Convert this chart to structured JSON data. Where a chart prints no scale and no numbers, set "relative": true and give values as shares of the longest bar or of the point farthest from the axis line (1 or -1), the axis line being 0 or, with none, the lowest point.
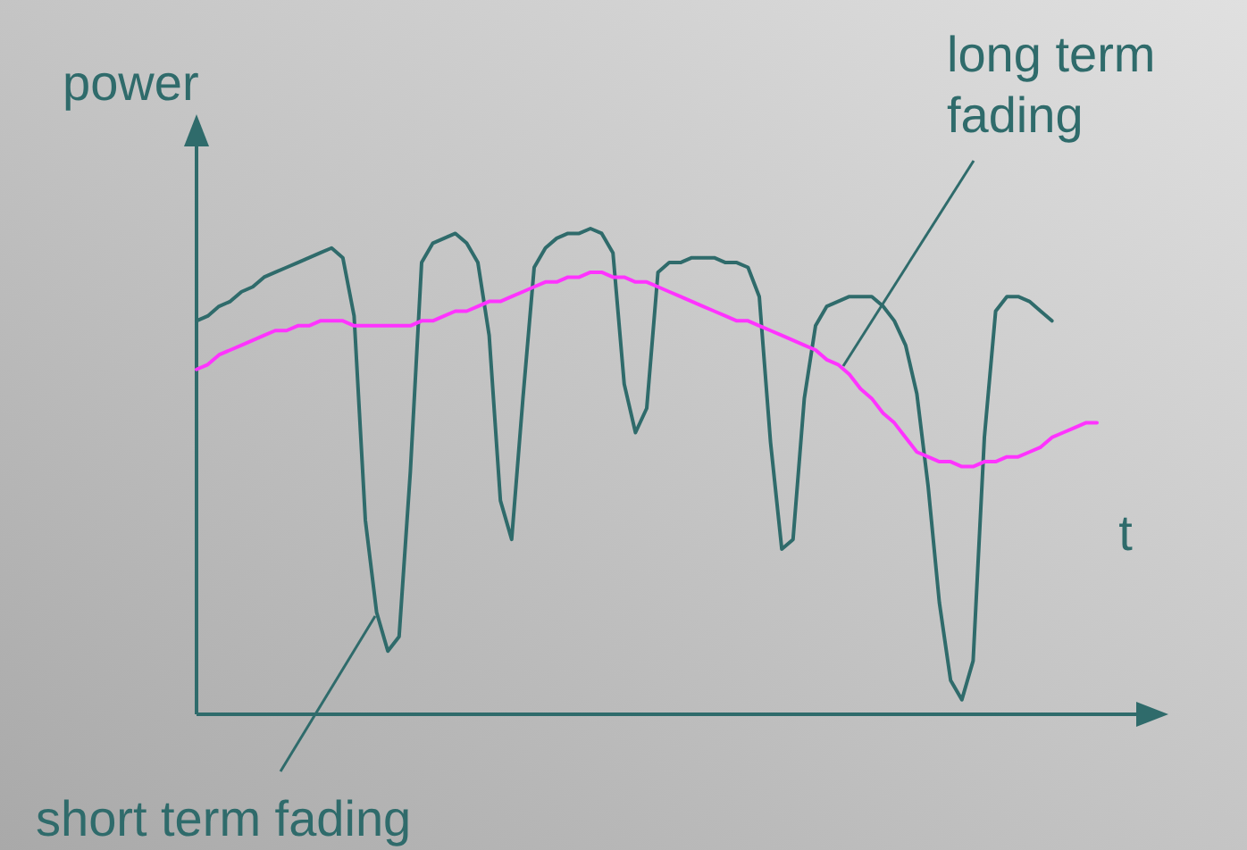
{
  "chart_data": {
    "type": "line",
    "relative": true,
    "xlabel": "t",
    "ylabel": "power",
    "line_style": "solid",
    "categories": [
      null,
      null,
      null,
      null,
      null,
      null,
      null,
      null,
      null,
      null,
      null,
      null,
      null,
      null,
      null,
      null,
      null,
      null,
      null,
      null,
      null,
      null,
      null,
      null,
      null,
      null,
      null,
      null,
      null,
      null,
      null,
      null,
      null,
      null,
      null,
      null,
      null,
      null,
      null,
      null,
      null,
      null,
      null,
      null,
      null,
      null,
      null,
      null,
      null,
      null,
      null,
      null,
      null,
      null,
      null,
      null,
      null,
      null,
      null,
      null,
      null,
      null,
      null,
      null,
      null,
      null,
      null,
      null,
      null,
      null,
      null,
      null,
      null,
      null,
      null,
      null,
      null,
      null,
      null,
      null,
      null
    ],
    "series": [
      {
        "color": "#2f6b6b",
        "values": [
          0.81,
          0.82,
          0.84,
          0.85,
          0.87,
          0.88,
          0.9,
          0.91,
          0.92,
          0.93,
          0.94,
          0.95,
          0.96,
          0.94,
          0.82,
          0.4,
          0.21,
          0.13,
          0.16,
          0.5,
          0.93,
          0.97,
          0.98,
          0.99,
          0.97,
          0.93,
          0.78,
          0.44,
          0.36,
          0.65,
          0.92,
          0.96,
          0.98,
          0.99,
          0.99,
          1,
          0.99,
          0.95,
          0.68,
          0.58,
          0.63,
          0.91,
          0.93,
          0.93,
          0.94,
          0.94,
          0.94,
          0.93,
          0.93,
          0.92,
          0.86,
          0.56,
          0.34,
          0.36,
          0.65,
          0.8,
          0.84,
          0.85,
          0.86,
          0.86,
          0.86,
          0.84,
          0.81,
          0.76,
          0.66,
          0.47,
          0.23,
          0.07,
          0.03,
          0.11,
          0.57,
          0.83,
          0.86,
          0.86,
          0.85,
          0.83,
          0.81,
          null,
          null,
          null,
          null
        ]
      },
      {
        "color": "#ff33ff",
        "values": [
          0.71,
          0.72,
          0.74,
          0.75,
          0.76,
          0.77,
          0.78,
          0.79,
          0.79,
          0.8,
          0.8,
          0.81,
          0.81,
          0.81,
          0.8,
          0.8,
          0.8,
          0.8,
          0.8,
          0.8,
          0.81,
          0.81,
          0.82,
          0.83,
          0.83,
          0.84,
          0.85,
          0.85,
          0.86,
          0.87,
          0.88,
          0.89,
          0.89,
          0.9,
          0.9,
          0.91,
          0.91,
          0.9,
          0.9,
          0.89,
          0.89,
          0.88,
          0.87,
          0.86,
          0.85,
          0.84,
          0.83,
          0.82,
          0.81,
          0.81,
          0.8,
          0.79,
          0.78,
          0.77,
          0.76,
          0.75,
          0.73,
          0.72,
          0.7,
          0.67,
          0.65,
          0.62,
          0.6,
          0.57,
          0.54,
          0.53,
          0.52,
          0.52,
          0.51,
          0.51,
          0.52,
          0.52,
          0.53,
          0.53,
          0.54,
          0.55,
          0.57,
          0.58,
          0.59,
          0.6,
          0.6
        ]
      }
    ],
    "annotations": [
      "long term fading",
      "short term fading"
    ]
  }
}
